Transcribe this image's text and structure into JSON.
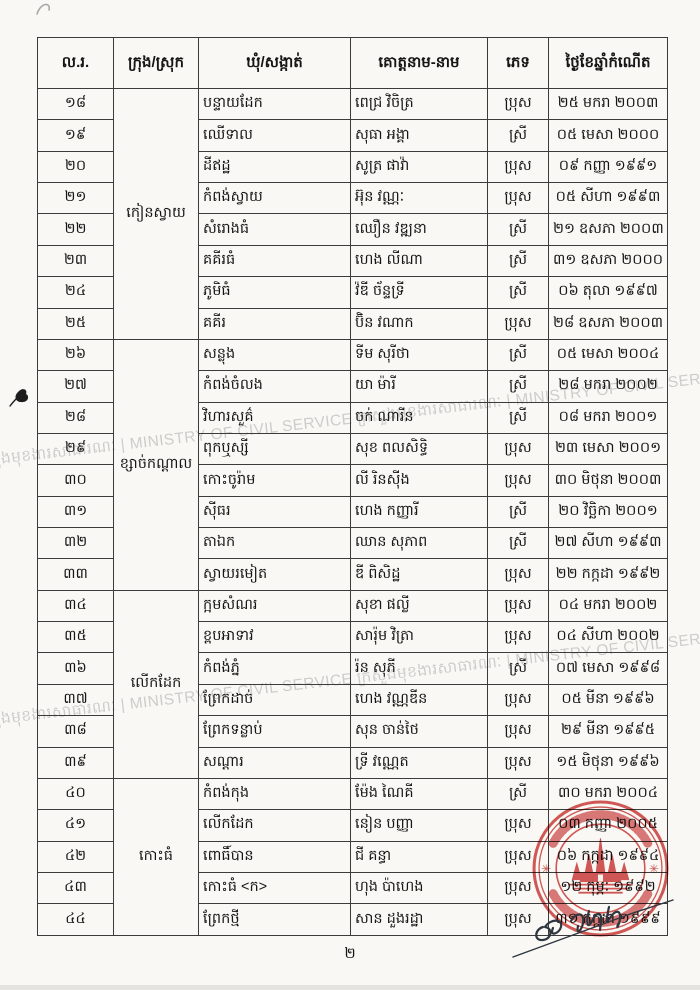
{
  "page": {
    "number": "២"
  },
  "watermark": {
    "line": "ក្រសួងមុខងារសាធារណៈ | MINISTRY OF CIVIL SERVICE ក្រសួងមុខងារសាធារណៈ | MINISTRY OF CIVIL SERVICE ក្រសួងមុខងារសាធារណៈ | MINISTRY OF CIVIL SERVICE"
  },
  "table": {
    "headers": [
      "ល.រ.",
      "ក្រុង/ស្រុក",
      "ឃុំ/សង្កាត់",
      "គោត្តនាម-នាម",
      "ភេទ",
      "ថ្ងៃខែឆ្នាំកំណើត"
    ],
    "groups": [
      {
        "district": "កៀនស្វាយ",
        "rows": [
          {
            "no": "១៨",
            "commune": "បន្ទាយដែក",
            "name": "ពេជ្រ វិចិត្រ",
            "gender": "ប្រុស",
            "dob": "២៥ មករា ២០០៣"
          },
          {
            "no": "១៩",
            "commune": "ឈើទាល",
            "name": "សុធា អង្គា",
            "gender": "ស្រី",
            "dob": "០៥ មេសា ២០០០"
          },
          {
            "no": "២០",
            "commune": "ដីឥដ្ឋ",
            "name": "សូត្រ ផាវ៉ា",
            "gender": "ប្រុស",
            "dob": "០៩ កញ្ញា ១៩៩១"
          },
          {
            "no": "២១",
            "commune": "កំពង់ស្វាយ",
            "name": "អ៊ុន វណ្ណៈ",
            "gender": "ប្រុស",
            "dob": "០៥ សីហា ១៩៩៣"
          },
          {
            "no": "២២",
            "commune": "សំរោងធំ",
            "name": "ឈឿន វឌ្ឍនា",
            "gender": "ស្រី",
            "dob": "២១ ឧសភា ២០០៣"
          },
          {
            "no": "២៣",
            "commune": "គគីរធំ",
            "name": "ហេង លីណា",
            "gender": "ស្រី",
            "dob": "៣១ ឧសភា ២០០០"
          },
          {
            "no": "២៤",
            "commune": "ភូមិធំ",
            "name": "វ៉ឌី ច័ន្ទទ្រី",
            "gender": "ស្រី",
            "dob": "០៦ តុលា ១៩៩៧"
          },
          {
            "no": "២៥",
            "commune": "គគីរ",
            "name": "ប៊ិន វណាក",
            "gender": "ប្រុស",
            "dob": "២៨ ឧសភា ២០០៣"
          }
        ]
      },
      {
        "district": "ខ្សាច់កណ្ដាល",
        "rows": [
          {
            "no": "២៦",
            "commune": "សន្លុង",
            "name": "ទីម សុរីថា",
            "gender": "ស្រី",
            "dob": "០៥ មេសា ២០០៤"
          },
          {
            "no": "២៧",
            "commune": "កំពង់ចំលង",
            "name": "យា ម៉ារី",
            "gender": "ស្រី",
            "dob": "២៨ មករា ២០០២"
          },
          {
            "no": "២៨",
            "commune": "វិហារសួគ៌",
            "name": "ចក់ ណារីន",
            "gender": "ស្រី",
            "dob": "០៨ មករា ២០០១"
          },
          {
            "no": "២៩",
            "commune": "ពុកឬស្សី",
            "name": "សុខ ពលសិទ្ធិ",
            "gender": "ប្រុស",
            "dob": "២៣ មេសា ២០០១"
          },
          {
            "no": "៣០",
            "commune": "កោះចូរ៉ាម",
            "name": "លី រិនស៊ីង",
            "gender": "ប្រុស",
            "dob": "៣០ មិថុនា ២០០៣"
          },
          {
            "no": "៣១",
            "commune": "ស៊ីធរ",
            "name": "ហេង កញ្ញារី",
            "gender": "ស្រី",
            "dob": "២០ វិច្ឆិកា ២០០១"
          },
          {
            "no": "៣២",
            "commune": "តាឯក",
            "name": "ឈាន សុភាព",
            "gender": "ស្រី",
            "dob": "២៧ សីហា ១៩៩៣"
          },
          {
            "no": "៣៣",
            "commune": "ស្វាយរមៀត",
            "name": "ឌី ពិសិដ្ឋ",
            "gender": "ប្រុស",
            "dob": "២២ កក្កដា ១៩៩២"
          }
        ]
      },
      {
        "district": "លើកដែក",
        "rows": [
          {
            "no": "៣៤",
            "commune": "ក្អមសំណរ",
            "name": "សុខា ផល្លី",
            "gender": "ប្រុស",
            "dob": "០៤ មករា ២០០២"
          },
          {
            "no": "៣៥",
            "commune": "ខ្ពបអាទាវ",
            "name": "សារ៉ុម វិត្រា",
            "gender": "ប្រុស",
            "dob": "០៤ សីហា ២០០២"
          },
          {
            "no": "៣៦",
            "commune": "កំពង់ភ្នំ",
            "name": "រ៉ន សុភី",
            "gender": "ស្រី",
            "dob": "០៧ មេសា ១៩៩៨"
          },
          {
            "no": "៣៧",
            "commune": "ព្រែកដាច់",
            "name": "ហេង វណ្ណឌីន",
            "gender": "ប្រុស",
            "dob": "០៥ មីនា ១៩៩៦"
          },
          {
            "no": "៣៨",
            "commune": "ព្រែកទន្លាប់",
            "name": "សុន ចាន់ថៃ",
            "gender": "ប្រុស",
            "dob": "២៩ មីនា ១៩៩៥"
          },
          {
            "no": "៣៩",
            "commune": "សណ្ដារ",
            "name": "ទ្រី វណ្ណេត",
            "gender": "ប្រុស",
            "dob": "១៥ មិថុនា ១៩៩៦"
          }
        ]
      },
      {
        "district": "កោះធំ",
        "rows": [
          {
            "no": "៤០",
            "commune": "កំពង់កុង",
            "name": "ម៉ែង ណៃគី",
            "gender": "ស្រី",
            "dob": "៣០ មករា ២០០៤"
          },
          {
            "no": "៤១",
            "commune": "លើកដែក",
            "name": "នៀន បញ្ញា",
            "gender": "ប្រុស",
            "dob": "០៣ កញ្ញា ២០០៥"
          },
          {
            "no": "៤២",
            "commune": "ពោធិ៍បាន",
            "name": "ជី គន្ធា",
            "gender": "ប្រុស",
            "dob": "០៦ កក្កដា ១៩៩៤"
          },
          {
            "no": "៤៣",
            "commune": "កោះធំ <ក>",
            "name": "ហុង ប៉ាហេង",
            "gender": "ប្រុស",
            "dob": "១២ កុម្ភៈ ១៩៩២"
          },
          {
            "no": "៤៤",
            "commune": "ព្រែកថ្មី",
            "name": "សាន ដួងរដ្ឋា",
            "gender": "ប្រុស",
            "dob": "៣១ កក្កដា ១៩៩៩"
          }
        ]
      }
    ]
  },
  "stamp": {
    "asterisk_left": "✳",
    "asterisk_right": "✳"
  },
  "colors": {
    "page_bg": "#f9f8f4",
    "table_border": "#3b3b3b",
    "ink_text": "#161616",
    "watermark_gray": "#a9a9a9",
    "stamp_red": "#cb3434",
    "signature_ink": "#2e3640"
  }
}
